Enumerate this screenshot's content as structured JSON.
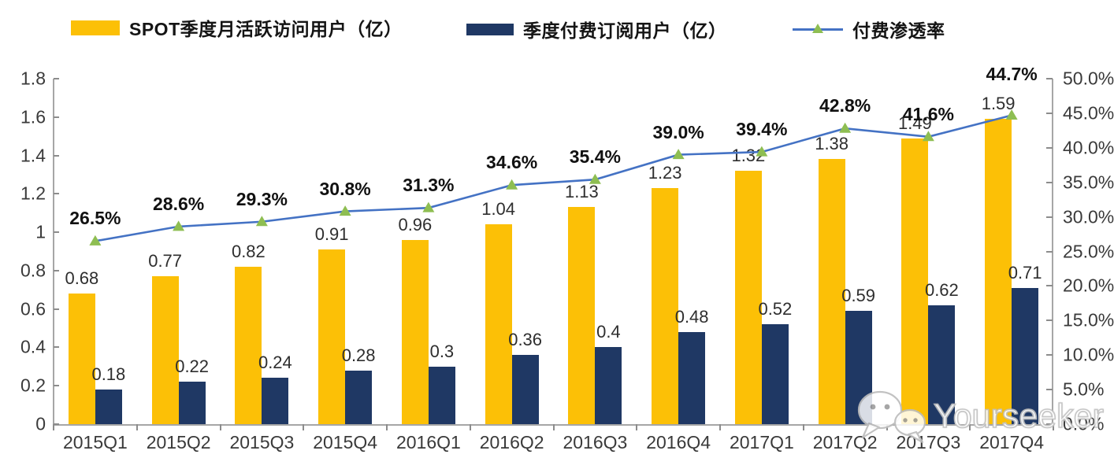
{
  "chart_data": {
    "type": "bar+line",
    "categories": [
      "2015Q1",
      "2015Q2",
      "2015Q3",
      "2015Q4",
      "2016Q1",
      "2016Q2",
      "2016Q3",
      "2016Q4",
      "2017Q1",
      "2017Q2",
      "2017Q3",
      "2017Q4"
    ],
    "series": [
      {
        "name": "SPOT季度月活跃访问用户（亿）",
        "type": "bar",
        "axis": "left",
        "color": "#FCC006",
        "values": [
          0.68,
          0.77,
          0.82,
          0.91,
          0.96,
          1.04,
          1.13,
          1.23,
          1.32,
          1.38,
          1.49,
          1.59
        ],
        "labels": [
          "0.68",
          "0.77",
          "0.82",
          "0.91",
          "0.96",
          "1.04",
          "1.13",
          "1.23",
          "1.32",
          "1.38",
          "1.49",
          "1.59"
        ]
      },
      {
        "name": "季度付费订阅用户（亿）",
        "type": "bar",
        "axis": "left",
        "color": "#1F3864",
        "values": [
          0.18,
          0.22,
          0.24,
          0.28,
          0.3,
          0.36,
          0.4,
          0.48,
          0.52,
          0.59,
          0.62,
          0.71
        ],
        "labels": [
          "0.18",
          "0.22",
          "0.24",
          "0.28",
          "0.3",
          "0.36",
          "0.4",
          "0.48",
          "0.52",
          "0.59",
          "0.62",
          "0.71"
        ]
      },
      {
        "name": "付费渗透率",
        "type": "line",
        "axis": "right",
        "color": "#4472C4",
        "marker": "triangle-up",
        "marker_color": "#8EBE52",
        "values": [
          26.5,
          28.6,
          29.3,
          30.8,
          31.3,
          34.6,
          35.4,
          39.0,
          39.4,
          42.8,
          41.6,
          44.7
        ],
        "labels": [
          "26.5%",
          "28.6%",
          "29.3%",
          "30.8%",
          "31.3%",
          "34.6%",
          "35.4%",
          "39.0%",
          "39.4%",
          "42.8%",
          "41.6%",
          "44.7%"
        ]
      }
    ],
    "left_axis": {
      "min": 0,
      "max": 1.8,
      "tick_labels": [
        "0",
        "0.2",
        "0.4",
        "0.6",
        "0.8",
        "1",
        "1.2",
        "1.4",
        "1.6",
        "1.8"
      ]
    },
    "right_axis": {
      "min": 0,
      "max": 50,
      "tick_labels": [
        "0.0%",
        "5.0%",
        "10.0%",
        "15.0%",
        "20.0%",
        "25.0%",
        "30.0%",
        "35.0%",
        "40.0%",
        "45.0%",
        "50.0%"
      ]
    },
    "grid": false,
    "legend_position": "top"
  },
  "watermark": {
    "text": "Yourseeker",
    "icon": "wechat-chat-bubbles-icon"
  },
  "colors": {
    "bar_mau": "#FCC006",
    "bar_subs": "#1F3864",
    "line": "#4472C4",
    "marker": "#8EBE52",
    "axis": "#a6a6a6"
  }
}
